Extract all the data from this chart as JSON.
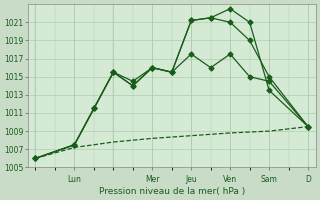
{
  "bg_color": "#c8dcc8",
  "plot_bg_color": "#d4ead4",
  "grid_color": "#b0ccb0",
  "line_color": "#1a5c1a",
  "xlabel": "Pression niveau de la mer( hPa )",
  "ylim": [
    1005,
    1023
  ],
  "yticks": [
    1005,
    1007,
    1009,
    1011,
    1013,
    1015,
    1017,
    1019,
    1021
  ],
  "xlim": [
    -0.2,
    7.2
  ],
  "day_tick_positions": [
    1,
    3,
    4,
    5,
    6,
    7
  ],
  "day_tick_labels": [
    "Lun",
    "Mer",
    "Jeu",
    "Ven",
    "Sam",
    "D"
  ],
  "series": [
    {
      "x": [
        0.0,
        1.0,
        2.0,
        3.0,
        4.0,
        5.0,
        6.0,
        7.0
      ],
      "y": [
        1006.0,
        1007.2,
        1007.8,
        1008.2,
        1008.5,
        1008.8,
        1009.0,
        1009.5
      ],
      "linestyle": "--",
      "marker": null,
      "lw": 0.9,
      "ms": 0
    },
    {
      "x": [
        0.0,
        1.0,
        1.5,
        2.0,
        2.5,
        3.0,
        3.5,
        4.0,
        4.5,
        5.0,
        5.5,
        6.0,
        7.0
      ],
      "y": [
        1006.0,
        1007.5,
        1011.5,
        1015.5,
        1014.5,
        1016.0,
        1015.5,
        1017.5,
        1016.0,
        1017.5,
        1015.0,
        1014.5,
        1009.5
      ],
      "linestyle": "-",
      "marker": "D",
      "lw": 0.9,
      "ms": 2.5
    },
    {
      "x": [
        0.0,
        1.0,
        1.5,
        2.0,
        2.5,
        3.0,
        3.5,
        4.0,
        4.5,
        5.0,
        5.5,
        6.0,
        7.0
      ],
      "y": [
        1006.0,
        1007.5,
        1011.5,
        1015.5,
        1014.0,
        1016.0,
        1015.5,
        1021.2,
        1021.5,
        1021.0,
        1019.0,
        1015.0,
        1009.5
      ],
      "linestyle": "-",
      "marker": "D",
      "lw": 0.9,
      "ms": 2.5
    },
    {
      "x": [
        0.0,
        1.0,
        1.5,
        2.0,
        2.5,
        3.0,
        3.5,
        4.0,
        4.5,
        5.0,
        5.5,
        6.0,
        7.0
      ],
      "y": [
        1006.0,
        1007.5,
        1011.5,
        1015.5,
        1014.0,
        1016.0,
        1015.5,
        1021.2,
        1021.5,
        1022.5,
        1021.0,
        1013.5,
        1009.5
      ],
      "linestyle": "-",
      "marker": "D",
      "lw": 0.9,
      "ms": 2.5
    }
  ]
}
